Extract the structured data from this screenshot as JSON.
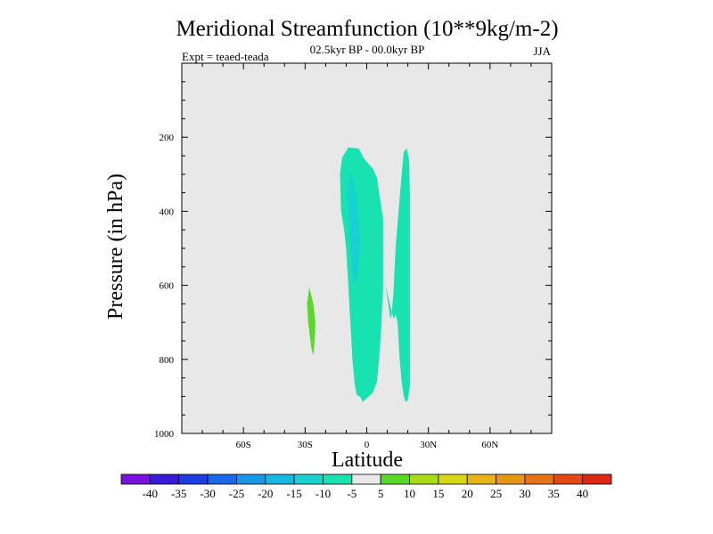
{
  "chart_data": {
    "type": "contour",
    "title": "Meridional Streamfunction (10**9kg/m-2)",
    "subtitle": "02.5kyr BP - 00.0kyr BP",
    "left_label": "Expt = teaed-teada",
    "right_label": "JJA",
    "xlabel": "Latitude",
    "ylabel": "Pressure (in hPa)",
    "xlim": [
      -90,
      90
    ],
    "ylim": [
      0,
      1000
    ],
    "y_inverted": true,
    "x_ticks": [
      {
        "value": -60,
        "label": "60S"
      },
      {
        "value": -30,
        "label": "30S"
      },
      {
        "value": 0,
        "label": "0"
      },
      {
        "value": 30,
        "label": "30N"
      },
      {
        "value": 60,
        "label": "60N"
      }
    ],
    "y_ticks": [
      {
        "value": 200,
        "label": "200"
      },
      {
        "value": 400,
        "label": "400"
      },
      {
        "value": 600,
        "label": "600"
      },
      {
        "value": 800,
        "label": "800"
      },
      {
        "value": 1000,
        "label": "1000"
      }
    ],
    "background_color": "#e8e8e8",
    "colorbar": {
      "colors": [
        "#7a10dc",
        "#3a1ad8",
        "#1e3ce0",
        "#1a68e8",
        "#1a96e6",
        "#1ab6e2",
        "#18d2d2",
        "#18e2b0",
        "#e8e8e8",
        "#5ad828",
        "#a8dc14",
        "#d6d614",
        "#e6b414",
        "#e69614",
        "#e67414",
        "#e24a14",
        "#dc2814"
      ],
      "labels": [
        "-40",
        "-35",
        "-30",
        "-25",
        "-20",
        "-15",
        "-10",
        "-5",
        "5",
        "10",
        "15",
        "20",
        "25",
        "30",
        "35",
        "40"
      ]
    },
    "regions": [
      {
        "name": "region-pos-10",
        "level": "5 to 10",
        "color": "#5ad828",
        "points": [
          [
            -28,
            605
          ],
          [
            -26,
            650
          ],
          [
            -25,
            700
          ],
          [
            -25.5,
            760
          ],
          [
            -26,
            790
          ],
          [
            -27,
            770
          ],
          [
            -28.5,
            700
          ],
          [
            -29,
            650
          ]
        ]
      },
      {
        "name": "region-neg-5-main",
        "level": "-10 to -5",
        "color": "#18e2b0",
        "points": [
          [
            -12,
            255
          ],
          [
            -9,
            228
          ],
          [
            -4,
            230
          ],
          [
            -1,
            260
          ],
          [
            3,
            285
          ],
          [
            5,
            310
          ],
          [
            6,
            350
          ],
          [
            8,
            420
          ],
          [
            8,
            600
          ],
          [
            7,
            720
          ],
          [
            6,
            800
          ],
          [
            5,
            860
          ],
          [
            3,
            890
          ],
          [
            1,
            900
          ],
          [
            -1,
            910
          ],
          [
            -2,
            915
          ],
          [
            -3,
            903
          ],
          [
            -5,
            895
          ],
          [
            -6,
            860
          ],
          [
            -7,
            800
          ],
          [
            -8,
            700
          ],
          [
            -9,
            600
          ],
          [
            -10,
            500
          ],
          [
            -11,
            450
          ],
          [
            -12.5,
            400
          ],
          [
            -13,
            300
          ]
        ]
      },
      {
        "name": "region-neg-5-east",
        "level": "-10 to -5",
        "color": "#18e2b0",
        "points": [
          [
            9,
            600
          ],
          [
            10.5,
            650
          ],
          [
            11.5,
            690
          ],
          [
            12,
            685
          ],
          [
            13,
            620
          ],
          [
            14,
            500
          ],
          [
            15.5,
            400
          ],
          [
            17,
            300
          ],
          [
            18,
            240
          ],
          [
            19.5,
            230
          ],
          [
            20.5,
            260
          ],
          [
            21,
            350
          ],
          [
            21,
            600
          ],
          [
            21,
            800
          ],
          [
            21,
            870
          ],
          [
            20,
            910
          ],
          [
            19,
            915
          ],
          [
            18,
            900
          ],
          [
            17,
            860
          ],
          [
            16,
            800
          ],
          [
            15,
            700
          ],
          [
            14,
            680
          ],
          [
            13,
            690
          ]
        ]
      },
      {
        "name": "region-neg-10-core",
        "level": "-15 to -10",
        "color": "#18d2d2",
        "points": [
          [
            -8,
            295
          ],
          [
            -6,
            320
          ],
          [
            -5,
            360
          ],
          [
            -4,
            420
          ],
          [
            -3,
            480
          ],
          [
            -4,
            550
          ],
          [
            -5,
            590
          ],
          [
            -6,
            600
          ],
          [
            -7,
            570
          ],
          [
            -8,
            500
          ],
          [
            -9,
            420
          ],
          [
            -9.5,
            350
          ]
        ]
      }
    ]
  }
}
